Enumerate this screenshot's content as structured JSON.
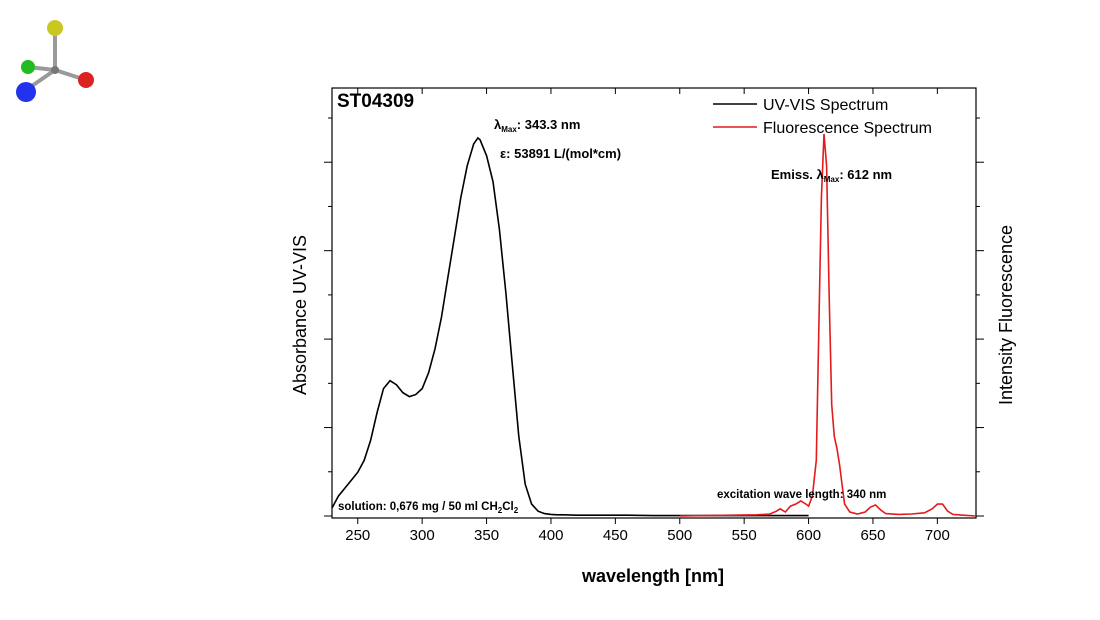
{
  "colors": {
    "uv_series": "#000000",
    "fluorescence_series": "#e41a1c",
    "axes": "#000000"
  },
  "logo": {
    "icon": "molecule-logo-icon"
  },
  "chart_data": {
    "type": "line",
    "title": "ST04309",
    "xlabel": "wavelength [nm]",
    "ylabel": "Absorbance UV-VIS",
    "y2label": "Intensity Fluorescence",
    "xlim": [
      230,
      730
    ],
    "ylim": [
      0,
      1
    ],
    "x_ticks": [
      250,
      300,
      350,
      400,
      450,
      500,
      550,
      600,
      650,
      700
    ],
    "grid": false,
    "legend_position": "top-right",
    "series": [
      {
        "name": "UV-VIS Spectrum",
        "axis": "left",
        "x": [
          230,
          235,
          240,
          245,
          250,
          255,
          260,
          265,
          270,
          275,
          280,
          285,
          290,
          295,
          300,
          305,
          310,
          315,
          320,
          325,
          330,
          335,
          340,
          343.3,
          345,
          350,
          355,
          360,
          365,
          370,
          375,
          380,
          385,
          390,
          395,
          400,
          405,
          410,
          420,
          440,
          460,
          480,
          500,
          520,
          540,
          560,
          580,
          600
        ],
        "y": [
          0.02,
          0.05,
          0.07,
          0.09,
          0.11,
          0.14,
          0.19,
          0.26,
          0.32,
          0.34,
          0.33,
          0.31,
          0.3,
          0.305,
          0.32,
          0.36,
          0.42,
          0.5,
          0.6,
          0.7,
          0.8,
          0.88,
          0.935,
          0.95,
          0.945,
          0.905,
          0.84,
          0.72,
          0.56,
          0.38,
          0.2,
          0.08,
          0.03,
          0.012,
          0.006,
          0.004,
          0.003,
          0.003,
          0.002,
          0.002,
          0.002,
          0.001,
          0.001,
          0.001,
          0.001,
          0.001,
          0.001,
          0.001
        ]
      },
      {
        "name": "Fluorescence Spectrum",
        "axis": "right",
        "x": [
          500,
          520,
          540,
          560,
          570,
          575,
          578,
          582,
          586,
          590,
          594,
          598,
          600,
          603,
          606,
          608,
          610,
          612,
          614,
          616,
          618,
          620,
          622,
          624,
          626,
          628,
          632,
          638,
          644,
          648,
          652,
          656,
          660,
          670,
          680,
          690,
          696,
          700,
          704,
          708,
          712,
          720,
          730
        ],
        "y": [
          0.0,
          0.001,
          0.002,
          0.003,
          0.005,
          0.012,
          0.018,
          0.01,
          0.025,
          0.03,
          0.038,
          0.03,
          0.025,
          0.05,
          0.14,
          0.48,
          0.8,
          0.96,
          0.88,
          0.55,
          0.28,
          0.2,
          0.17,
          0.13,
          0.08,
          0.03,
          0.01,
          0.005,
          0.01,
          0.022,
          0.028,
          0.015,
          0.006,
          0.004,
          0.005,
          0.008,
          0.018,
          0.03,
          0.03,
          0.012,
          0.004,
          0.002,
          0.0
        ]
      }
    ],
    "annotations": {
      "lambda_max_prefix": "λ",
      "lambda_max_sub": "Max",
      "abs_lambda_value": ": 343.3 nm",
      "epsilon": "ε: 53891 L/(mol*cm)",
      "emiss_prefix": "Emiss. λ",
      "emiss_sub": "Max",
      "emiss_value": ": 612 nm",
      "solution_main": "solution: 0,676 mg / 50 ml CH",
      "solution_sub1": "2",
      "solution_mid": "Cl",
      "solution_sub2": "2",
      "excitation": "excitation wave length: 340 nm"
    }
  }
}
